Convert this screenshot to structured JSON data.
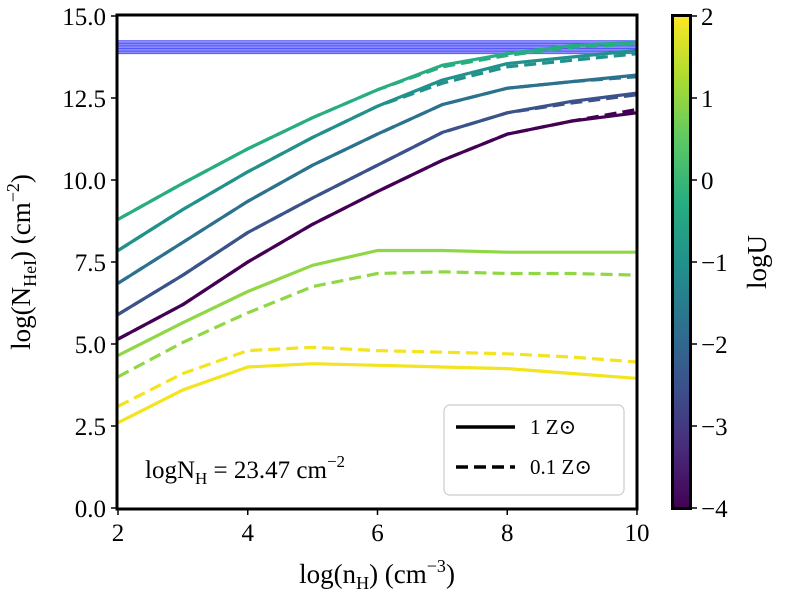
{
  "chart_data": {
    "type": "line",
    "xlabel": "log(n_H) (cm^-3)",
    "ylabel": "log(N_HeI) (cm^-2)",
    "xlim": [
      2,
      10
    ],
    "ylim": [
      0,
      15
    ],
    "x_ticks": [
      "2",
      "4",
      "6",
      "8",
      "10"
    ],
    "y_ticks": [
      "0.0",
      "2.5",
      "5.0",
      "7.5",
      "10.0",
      "12.5",
      "15.0"
    ],
    "x": [
      2,
      3,
      4,
      5,
      6,
      7,
      8,
      9,
      10
    ],
    "annotation": {
      "text": "logN_H = 23.47 cm^-2",
      "value": "23.47"
    },
    "observed_band": {
      "ymin": 13.85,
      "ymax": 14.25,
      "color": "#6666ff"
    },
    "legend": [
      {
        "label": "1 Z⊙",
        "style": "solid"
      },
      {
        "label": "0.1 Z⊙",
        "style": "dashed"
      }
    ],
    "colorbar": {
      "label": "logU",
      "range": [
        -4,
        2
      ],
      "ticks": [
        "2",
        "1",
        "0",
        "−1",
        "−2",
        "−3",
        "−4"
      ]
    },
    "series": [
      {
        "name": "logU=-4, 1 Zsun",
        "logU": -4,
        "style": "solid",
        "color": "#440154",
        "values": [
          5.15,
          6.2,
          7.5,
          8.65,
          9.65,
          10.6,
          11.4,
          11.8,
          12.05
        ]
      },
      {
        "name": "logU=-4, 0.1 Zsun",
        "logU": -4,
        "style": "dashed",
        "color": "#440154",
        "values": [
          5.15,
          6.2,
          7.5,
          8.65,
          9.65,
          10.6,
          11.4,
          11.8,
          12.15
        ]
      },
      {
        "name": "logU=-3, 1 Zsun",
        "logU": -3,
        "style": "solid",
        "color": "#3b528b",
        "values": [
          5.9,
          7.1,
          8.4,
          9.45,
          10.45,
          11.45,
          12.05,
          12.4,
          12.65
        ]
      },
      {
        "name": "logU=-3, 0.1 Zsun",
        "logU": -3,
        "style": "dashed",
        "color": "#3b528b",
        "values": [
          5.9,
          7.1,
          8.4,
          9.45,
          10.45,
          11.45,
          12.05,
          12.35,
          12.6
        ]
      },
      {
        "name": "logU=-2, 1 Zsun",
        "logU": -2,
        "style": "solid",
        "color": "#2c728e",
        "values": [
          6.85,
          8.1,
          9.35,
          10.45,
          11.4,
          12.3,
          12.8,
          13.0,
          13.2
        ]
      },
      {
        "name": "logU=-2, 0.1 Zsun",
        "logU": -2,
        "style": "dashed",
        "color": "#2c728e",
        "values": [
          6.85,
          8.1,
          9.35,
          10.45,
          11.4,
          12.3,
          12.8,
          13.0,
          13.15
        ]
      },
      {
        "name": "logU=-1, 1 Zsun",
        "logU": -1,
        "style": "solid",
        "color": "#21918c",
        "values": [
          7.85,
          9.1,
          10.25,
          11.3,
          12.25,
          13.05,
          13.55,
          13.75,
          13.95
        ]
      },
      {
        "name": "logU=-1, 0.1 Zsun",
        "logU": -1,
        "style": "dashed",
        "color": "#21918c",
        "values": [
          7.85,
          9.1,
          10.25,
          11.3,
          12.25,
          12.95,
          13.45,
          13.65,
          13.85
        ]
      },
      {
        "name": "logU=0, 1 Zsun",
        "logU": 0,
        "style": "solid",
        "color": "#27ad81",
        "values": [
          8.8,
          9.9,
          10.95,
          11.9,
          12.75,
          13.5,
          13.85,
          14.1,
          14.2
        ]
      },
      {
        "name": "logU=0, 0.1 Zsun",
        "logU": 0,
        "style": "dashed",
        "color": "#27ad81",
        "values": [
          8.8,
          9.9,
          10.95,
          11.9,
          12.75,
          13.45,
          13.8,
          14.05,
          14.15
        ]
      },
      {
        "name": "logU=1, 1 Zsun",
        "logU": 1,
        "style": "solid",
        "color": "#8fd744",
        "values": [
          4.65,
          5.65,
          6.6,
          7.4,
          7.85,
          7.85,
          7.8,
          7.8,
          7.8
        ]
      },
      {
        "name": "logU=1, 0.1 Zsun",
        "logU": 1,
        "style": "dashed",
        "color": "#8fd744",
        "values": [
          4.0,
          5.05,
          5.95,
          6.75,
          7.15,
          7.2,
          7.15,
          7.15,
          7.1
        ]
      },
      {
        "name": "logU=2, 1 Zsun",
        "logU": 2,
        "style": "solid",
        "color": "#f3e41f",
        "values": [
          2.6,
          3.6,
          4.3,
          4.4,
          4.35,
          4.3,
          4.25,
          4.1,
          3.95
        ]
      },
      {
        "name": "logU=2, 0.1 Zsun",
        "logU": 2,
        "style": "dashed",
        "color": "#f3e41f",
        "values": [
          3.1,
          4.1,
          4.8,
          4.9,
          4.8,
          4.75,
          4.7,
          4.6,
          4.45
        ]
      }
    ]
  }
}
